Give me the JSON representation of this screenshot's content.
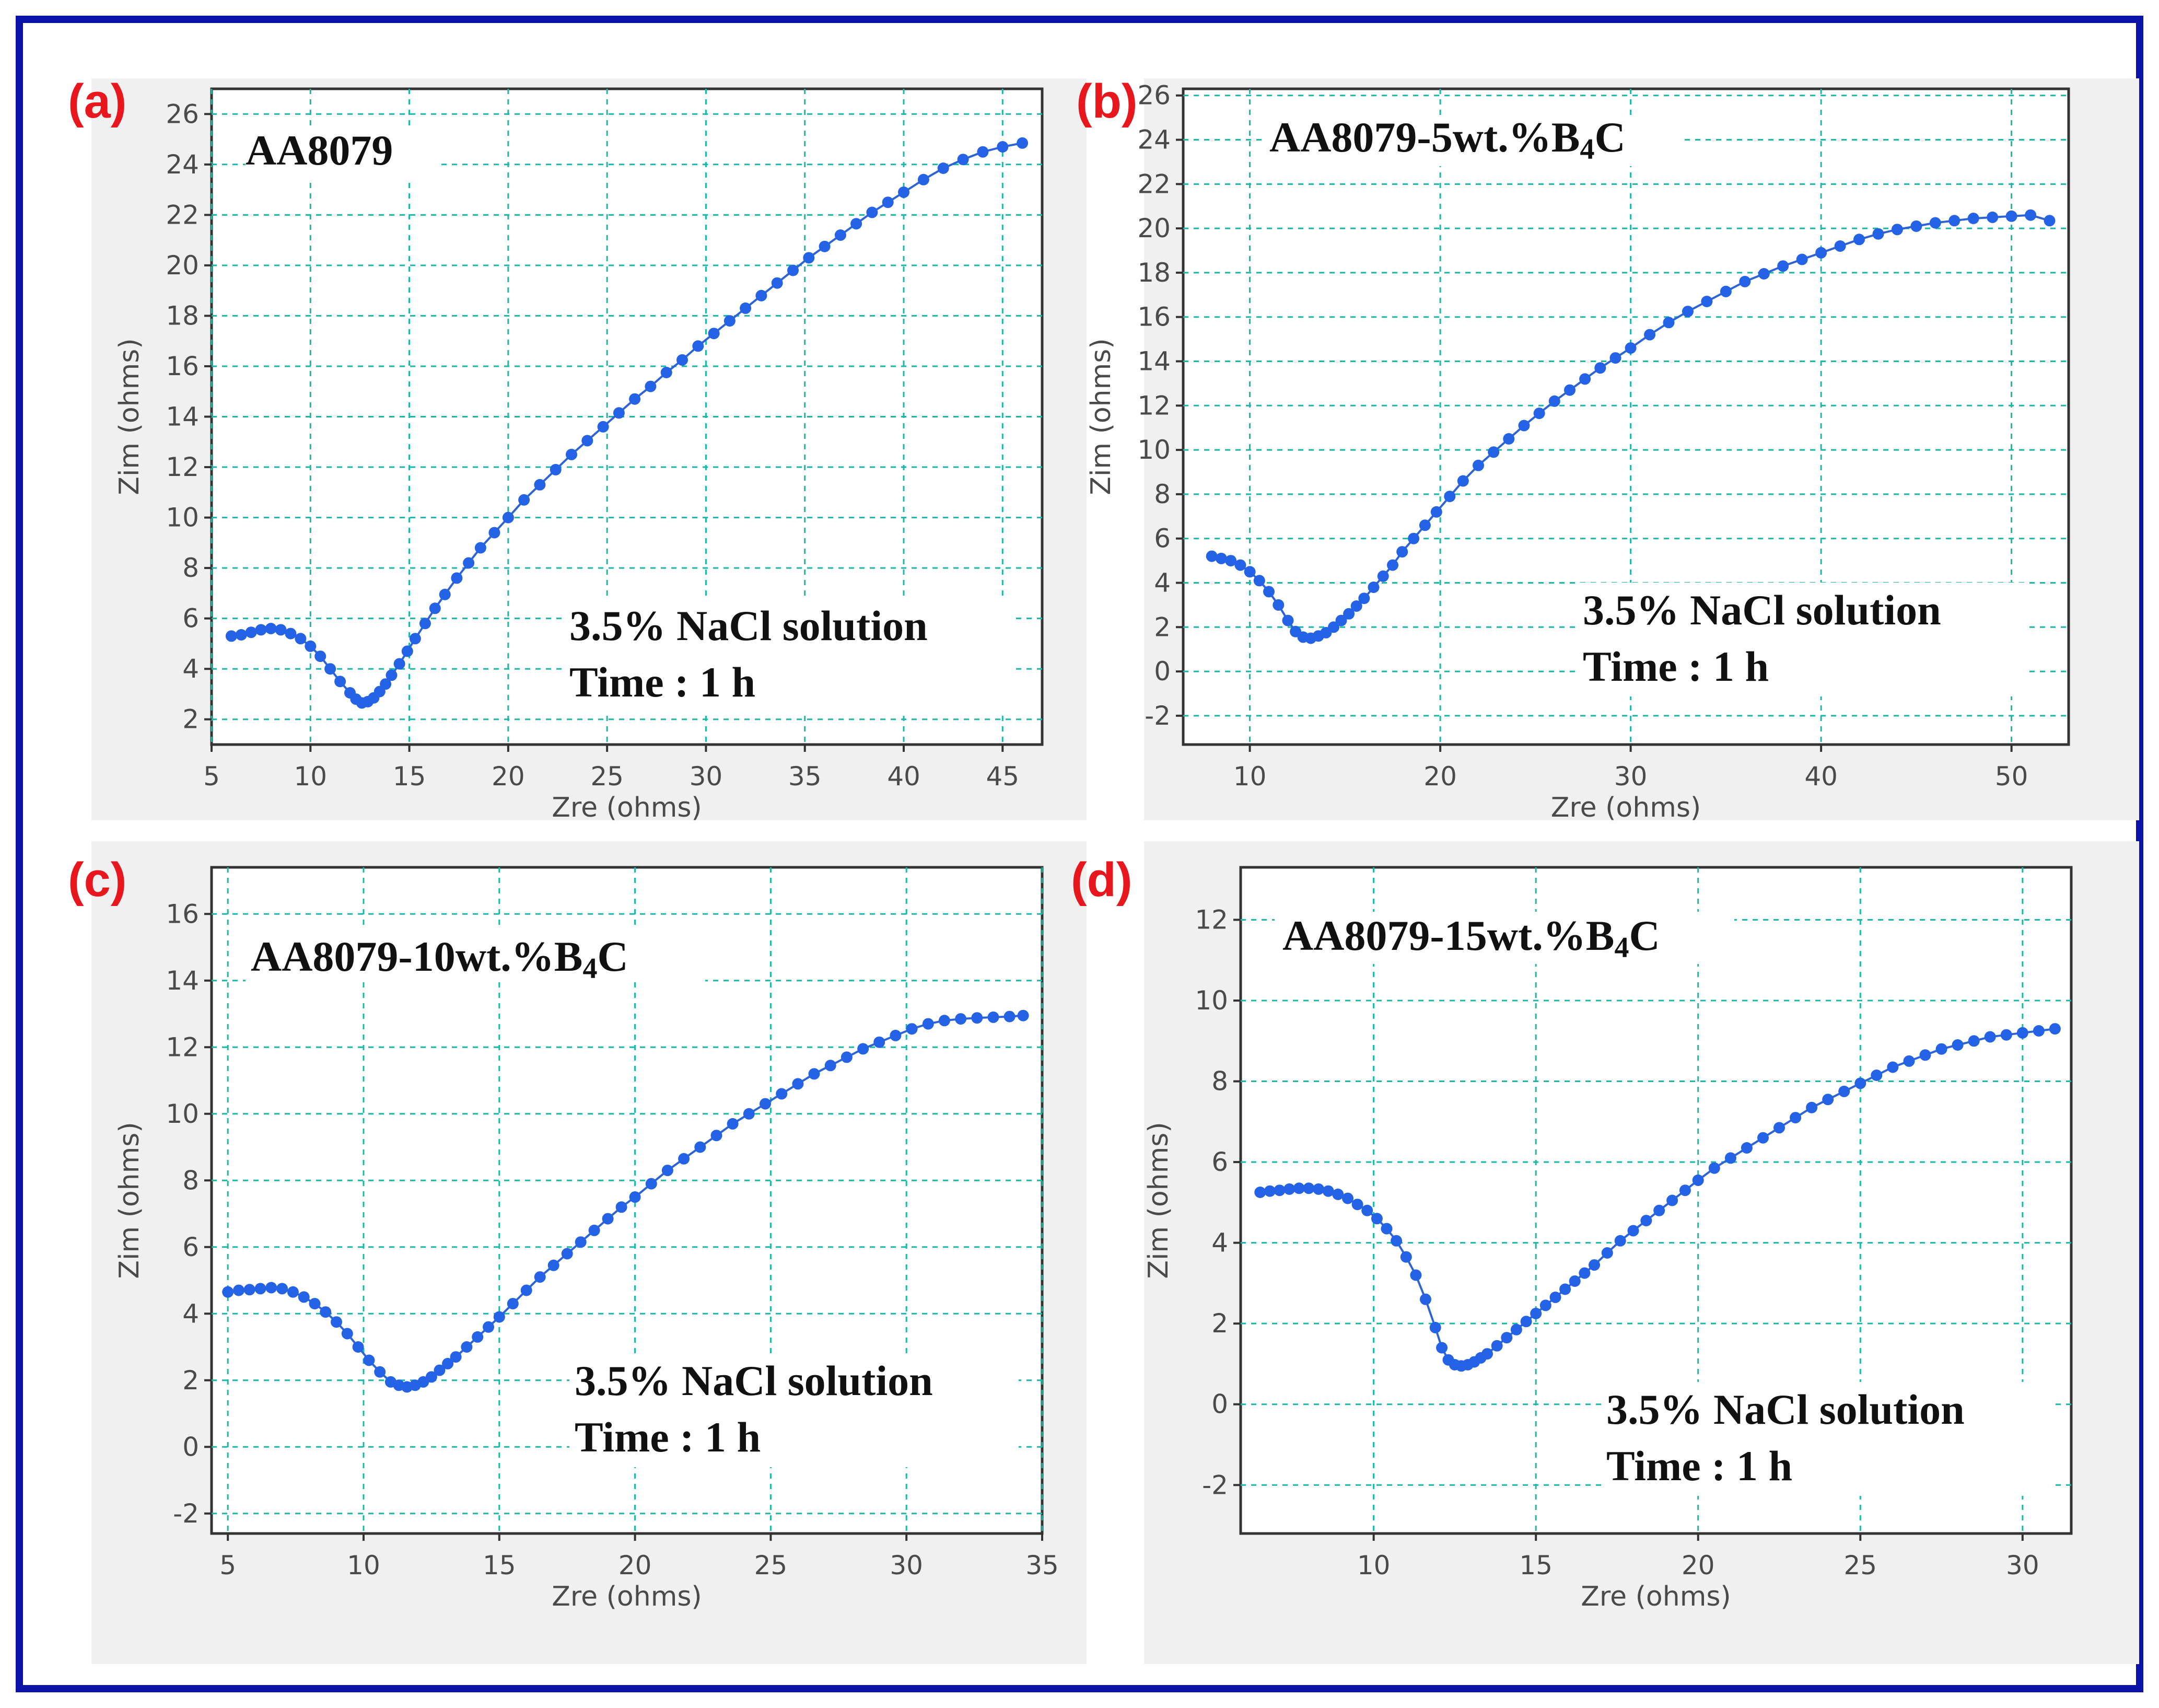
{
  "chart_data": [
    {
      "type": "scatter",
      "panel": "(a)",
      "title": "AA8079",
      "annotation": [
        "3.5% NaCl solution",
        "Time : 1 h"
      ],
      "xlabel": "Zre (ohms)",
      "ylabel": "Zim (ohms)",
      "xlim": [
        5,
        47
      ],
      "ylim": [
        1,
        27
      ],
      "xticks": [
        5,
        10,
        15,
        20,
        25,
        30,
        35,
        40,
        45
      ],
      "yticks": [
        2,
        4,
        6,
        8,
        10,
        12,
        14,
        16,
        18,
        20,
        22,
        24,
        26
      ],
      "grid": true,
      "series": [
        {
          "name": "AA8079",
          "color": "#2563e6",
          "x": [
            6,
            6.5,
            7,
            7.5,
            8,
            8.5,
            9,
            9.5,
            10,
            10.5,
            11,
            11.5,
            12,
            12.3,
            12.6,
            12.9,
            13.2,
            13.5,
            13.8,
            14.1,
            14.5,
            14.9,
            15.3,
            15.8,
            16.3,
            16.8,
            17.4,
            18,
            18.6,
            19.3,
            20,
            20.8,
            21.6,
            22.4,
            23.2,
            24,
            24.8,
            25.6,
            26.4,
            27.2,
            28,
            28.8,
            29.6,
            30.4,
            31.2,
            32,
            32.8,
            33.6,
            34.4,
            35.2,
            36,
            36.8,
            37.6,
            38.4,
            39.2,
            40,
            41,
            42,
            43,
            44,
            45,
            46
          ],
          "y": [
            5.3,
            5.35,
            5.45,
            5.55,
            5.6,
            5.55,
            5.4,
            5.2,
            4.9,
            4.5,
            4.0,
            3.5,
            3.05,
            2.8,
            2.65,
            2.7,
            2.85,
            3.1,
            3.4,
            3.75,
            4.2,
            4.7,
            5.2,
            5.8,
            6.4,
            6.95,
            7.6,
            8.2,
            8.8,
            9.4,
            10.0,
            10.7,
            11.3,
            11.9,
            12.5,
            13.05,
            13.6,
            14.15,
            14.7,
            15.2,
            15.75,
            16.25,
            16.8,
            17.3,
            17.8,
            18.3,
            18.8,
            19.3,
            19.8,
            20.3,
            20.75,
            21.2,
            21.65,
            22.1,
            22.5,
            22.9,
            23.4,
            23.85,
            24.2,
            24.5,
            24.7,
            24.85
          ]
        }
      ]
    },
    {
      "type": "scatter",
      "panel": "(b)",
      "title": "AA8079-5wt.%B",
      "title_sub": "4",
      "title_end": "C",
      "annotation": [
        "3.5% NaCl solution",
        "Time : 1 h"
      ],
      "xlabel": "Zre (ohms)",
      "ylabel": "Zim (ohms)",
      "xlim": [
        6.5,
        53
      ],
      "ylim": [
        -3.3,
        26.3
      ],
      "xticks": [
        10,
        20,
        30,
        40,
        50
      ],
      "yticks": [
        -2,
        0,
        2,
        4,
        6,
        8,
        10,
        12,
        14,
        16,
        18,
        20,
        22,
        24,
        26
      ],
      "grid": true,
      "series": [
        {
          "name": "AA8079-5wt.%B4C",
          "color": "#2563e6",
          "x": [
            8,
            8.5,
            9,
            9.5,
            10,
            10.5,
            11,
            11.5,
            12,
            12.4,
            12.8,
            13.2,
            13.6,
            14,
            14.4,
            14.8,
            15.2,
            15.6,
            16,
            16.5,
            17,
            17.5,
            18,
            18.6,
            19.2,
            19.8,
            20.5,
            21.2,
            22,
            22.8,
            23.6,
            24.4,
            25.2,
            26,
            26.8,
            27.6,
            28.4,
            29.2,
            30,
            31,
            32,
            33,
            34,
            35,
            36,
            37,
            38,
            39,
            40,
            41,
            42,
            43,
            44,
            45,
            46,
            47,
            48,
            49,
            50,
            51,
            52
          ],
          "y": [
            5.2,
            5.1,
            5.0,
            4.8,
            4.5,
            4.1,
            3.6,
            3.0,
            2.3,
            1.8,
            1.55,
            1.5,
            1.6,
            1.75,
            2.0,
            2.3,
            2.6,
            2.95,
            3.3,
            3.8,
            4.3,
            4.8,
            5.4,
            6.0,
            6.6,
            7.2,
            7.9,
            8.6,
            9.3,
            9.9,
            10.5,
            11.1,
            11.65,
            12.2,
            12.7,
            13.2,
            13.7,
            14.15,
            14.6,
            15.2,
            15.75,
            16.25,
            16.7,
            17.15,
            17.6,
            17.95,
            18.3,
            18.6,
            18.9,
            19.2,
            19.5,
            19.75,
            19.95,
            20.1,
            20.25,
            20.35,
            20.45,
            20.5,
            20.55,
            20.6,
            20.35
          ]
        }
      ]
    },
    {
      "type": "scatter",
      "panel": "(c)",
      "title": "AA8079-10wt.%B",
      "title_sub": "4",
      "title_end": "C",
      "annotation": [
        "3.5% NaCl solution",
        "Time : 1 h"
      ],
      "xlabel": "Zre (ohms)",
      "ylabel": "Zim (ohms)",
      "xlim": [
        4.4,
        35
      ],
      "ylim": [
        -2.6,
        17.4
      ],
      "xticks": [
        5,
        10,
        15,
        20,
        25,
        30,
        35
      ],
      "yticks": [
        -2,
        0,
        2,
        4,
        6,
        8,
        10,
        12,
        14,
        16
      ],
      "grid": true,
      "series": [
        {
          "name": "AA8079-10wt.%B4C",
          "color": "#2563e6",
          "x": [
            5,
            5.4,
            5.8,
            6.2,
            6.6,
            7,
            7.4,
            7.8,
            8.2,
            8.6,
            9,
            9.4,
            9.8,
            10.2,
            10.6,
            11,
            11.3,
            11.6,
            11.9,
            12.2,
            12.5,
            12.8,
            13.1,
            13.4,
            13.8,
            14.2,
            14.6,
            15,
            15.5,
            16,
            16.5,
            17,
            17.5,
            18,
            18.5,
            19,
            19.5,
            20,
            20.6,
            21.2,
            21.8,
            22.4,
            23,
            23.6,
            24.2,
            24.8,
            25.4,
            26,
            26.6,
            27.2,
            27.8,
            28.4,
            29,
            29.6,
            30.2,
            30.8,
            31.4,
            32,
            32.6,
            33.2,
            33.8,
            34.3
          ],
          "y": [
            4.65,
            4.7,
            4.72,
            4.75,
            4.78,
            4.75,
            4.65,
            4.5,
            4.3,
            4.05,
            3.75,
            3.4,
            3.0,
            2.6,
            2.25,
            1.95,
            1.85,
            1.8,
            1.85,
            1.95,
            2.1,
            2.3,
            2.5,
            2.7,
            3.0,
            3.3,
            3.6,
            3.9,
            4.3,
            4.7,
            5.1,
            5.45,
            5.8,
            6.15,
            6.5,
            6.85,
            7.2,
            7.5,
            7.9,
            8.3,
            8.65,
            9.0,
            9.35,
            9.7,
            10.0,
            10.3,
            10.6,
            10.9,
            11.2,
            11.45,
            11.7,
            11.95,
            12.15,
            12.35,
            12.55,
            12.7,
            12.8,
            12.85,
            12.88,
            12.9,
            12.92,
            12.95
          ]
        }
      ]
    },
    {
      "type": "scatter",
      "panel": "(d)",
      "title": "AA8079-15wt.%B",
      "title_sub": "4",
      "title_end": "C",
      "annotation": [
        "3.5% NaCl solution",
        "Time : 1 h"
      ],
      "xlabel": "Zre (ohms)",
      "ylabel": "Zim (ohms)",
      "xlim": [
        5.9,
        31.5
      ],
      "ylim": [
        -3.2,
        13.3
      ],
      "xticks": [
        10,
        15,
        20,
        25,
        30
      ],
      "yticks": [
        -2,
        0,
        2,
        4,
        6,
        8,
        10,
        12
      ],
      "grid": true,
      "series": [
        {
          "name": "AA8079-15wt.%B4C",
          "color": "#2563e6",
          "x": [
            6.5,
            6.8,
            7.1,
            7.4,
            7.7,
            8,
            8.3,
            8.6,
            8.9,
            9.2,
            9.5,
            9.8,
            10.1,
            10.4,
            10.7,
            11,
            11.3,
            11.6,
            11.9,
            12.1,
            12.3,
            12.5,
            12.7,
            12.9,
            13.1,
            13.3,
            13.5,
            13.8,
            14.1,
            14.4,
            14.7,
            15,
            15.3,
            15.6,
            15.9,
            16.2,
            16.5,
            16.8,
            17.2,
            17.6,
            18,
            18.4,
            18.8,
            19.2,
            19.6,
            20,
            20.5,
            21,
            21.5,
            22,
            22.5,
            23,
            23.5,
            24,
            24.5,
            25,
            25.5,
            26,
            26.5,
            27,
            27.5,
            28,
            28.5,
            29,
            29.5,
            30,
            30.5,
            31
          ],
          "y": [
            5.25,
            5.28,
            5.3,
            5.33,
            5.35,
            5.35,
            5.33,
            5.28,
            5.2,
            5.1,
            4.95,
            4.8,
            4.6,
            4.35,
            4.05,
            3.65,
            3.2,
            2.6,
            1.9,
            1.4,
            1.1,
            0.98,
            0.95,
            0.98,
            1.05,
            1.15,
            1.25,
            1.45,
            1.65,
            1.85,
            2.05,
            2.25,
            2.45,
            2.65,
            2.85,
            3.05,
            3.25,
            3.45,
            3.75,
            4.05,
            4.3,
            4.55,
            4.8,
            5.05,
            5.3,
            5.55,
            5.85,
            6.1,
            6.35,
            6.6,
            6.85,
            7.1,
            7.35,
            7.55,
            7.75,
            7.95,
            8.15,
            8.35,
            8.5,
            8.65,
            8.8,
            8.9,
            9.0,
            9.1,
            9.15,
            9.2,
            9.25,
            9.3
          ]
        }
      ]
    }
  ]
}
